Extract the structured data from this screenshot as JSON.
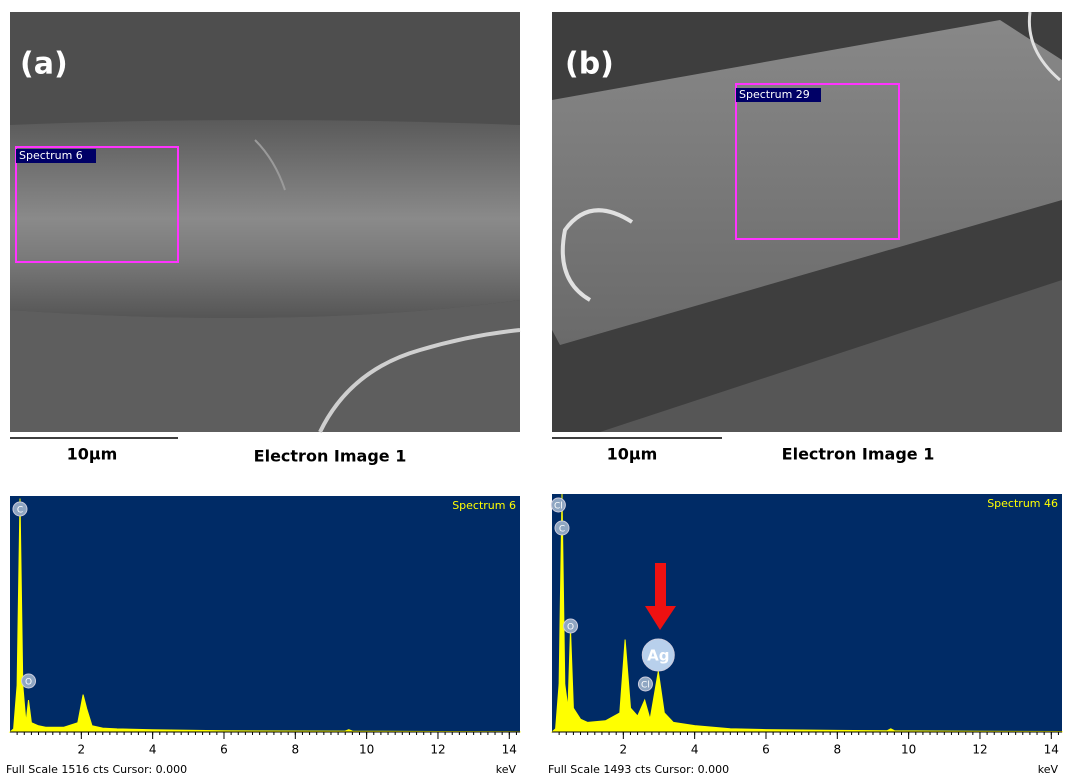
{
  "images": [
    {
      "label": "(a)",
      "box_label": "Spectrum 6",
      "scale_bar": "10μm",
      "caption": "Electron Image 1"
    },
    {
      "label": "(b)",
      "box_label": "Spectrum 29",
      "scale_bar": "10μm",
      "caption": "Electron Image 1"
    }
  ],
  "chart_data": [
    {
      "type": "area",
      "title": "Spectrum 6",
      "footer": "Full Scale 1516 cts Cursor: 0.000",
      "xlabel": "keV",
      "x": [
        0.1,
        0.2,
        0.28,
        0.36,
        0.45,
        0.52,
        0.6,
        0.8,
        1.0,
        1.5,
        1.9,
        2.05,
        2.15,
        2.3,
        2.6,
        3,
        4,
        6,
        9.4,
        9.5,
        9.6,
        12,
        14.3
      ],
      "values": [
        20,
        300,
        1500,
        300,
        60,
        205,
        60,
        40,
        30,
        30,
        60,
        240,
        150,
        40,
        25,
        20,
        15,
        8,
        6,
        15,
        6,
        3,
        2
      ],
      "color": "#ffff00",
      "background": "#002b66",
      "xlim": [
        0,
        14.3
      ],
      "ylim": [
        0,
        1516
      ],
      "xticks": [
        2,
        4,
        6,
        8,
        10,
        12,
        14
      ],
      "peak_labels": [
        {
          "text": "C",
          "value": 0.28
        },
        {
          "text": "O",
          "value": 0.52
        }
      ]
    },
    {
      "type": "area",
      "title": "Spectrum 46",
      "footer": "Full Scale 1493 cts Cursor: 0.000",
      "xlabel": "keV",
      "x": [
        0.1,
        0.2,
        0.28,
        0.36,
        0.45,
        0.52,
        0.6,
        0.8,
        1.0,
        1.5,
        1.9,
        2.05,
        2.2,
        2.4,
        2.6,
        2.75,
        2.98,
        3.15,
        3.4,
        4,
        5,
        6,
        8,
        9.4,
        9.5,
        9.6,
        12,
        14.3
      ],
      "values": [
        20,
        300,
        1493,
        300,
        150,
        645,
        150,
        80,
        60,
        70,
        120,
        580,
        150,
        100,
        200,
        80,
        380,
        120,
        60,
        40,
        20,
        15,
        10,
        8,
        20,
        8,
        5,
        3
      ],
      "color": "#ffff00",
      "background": "#002b66",
      "xlim": [
        0,
        14.3
      ],
      "ylim": [
        0,
        1493
      ],
      "xticks": [
        2,
        4,
        6,
        8,
        10,
        12,
        14
      ],
      "peak_labels": [
        {
          "text": "Cl",
          "value": 0.18
        },
        {
          "text": "C",
          "value": 0.28
        },
        {
          "text": "O",
          "value": 0.52
        },
        {
          "text": "Ag",
          "value": 2.98
        },
        {
          "text": "Cl",
          "value": 2.62
        }
      ]
    }
  ]
}
